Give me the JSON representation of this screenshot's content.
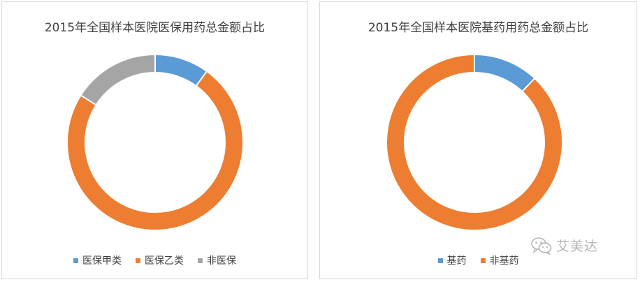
{
  "chart_data": [
    {
      "type": "pie",
      "title": "2015年全国样本医院医保用药总金额占比",
      "categories": [
        "医保甲类",
        "医保乙类",
        "非医保"
      ],
      "values": [
        10,
        74,
        16
      ],
      "colors": [
        "#5b9bd5",
        "#ed7d31",
        "#a5a5a5"
      ],
      "legend_position": "bottom"
    },
    {
      "type": "pie",
      "title": "2015年全国样本医院基药用药总金额占比",
      "categories": [
        "基药",
        "非基药"
      ],
      "values": [
        12,
        88
      ],
      "colors": [
        "#5b9bd5",
        "#ed7d31"
      ],
      "legend_position": "bottom"
    }
  ],
  "watermark": {
    "text": "艾美达",
    "icon": "wechat-icon"
  }
}
